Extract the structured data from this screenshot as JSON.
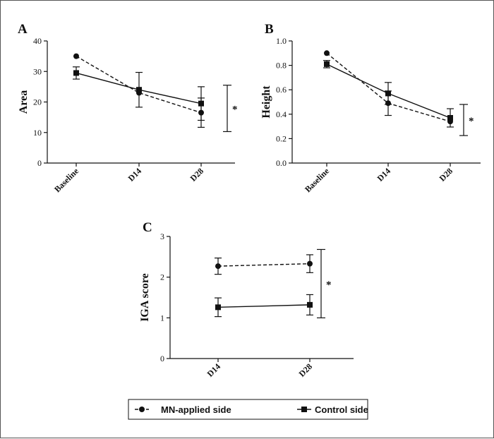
{
  "chart_data": [
    {
      "type": "line",
      "panel_label": "A",
      "ylabel": "Area",
      "xlabel": "",
      "categories": [
        "Baseline",
        "D14",
        "D28"
      ],
      "ylim": [
        0,
        40
      ],
      "yticks": [
        "0",
        "10",
        "20",
        "30",
        "40"
      ],
      "series": [
        {
          "name": "MN-applied  side",
          "values": [
            35.0,
            23.0,
            16.5
          ],
          "errors": [
            0,
            0,
            4.8
          ],
          "style": "dashed",
          "marker": "circle"
        },
        {
          "name": "Control side",
          "values": [
            29.5,
            24.0,
            19.5
          ],
          "errors": [
            2.0,
            5.7,
            5.5
          ],
          "style": "solid",
          "marker": "square"
        }
      ],
      "significance": {
        "label": "*",
        "range": [
          10.3,
          25.5
        ]
      }
    },
    {
      "type": "line",
      "panel_label": "B",
      "ylabel": "Height",
      "xlabel": "",
      "categories": [
        "Baseline",
        "D14",
        "D28"
      ],
      "ylim": [
        0,
        1.0
      ],
      "yticks": [
        "0.0",
        "0.2",
        "0.4",
        "0.6",
        "0.8",
        "1.0"
      ],
      "series": [
        {
          "name": "MN-applied  side",
          "values": [
            0.9,
            0.49,
            0.34
          ],
          "errors": [
            0,
            0.1,
            0
          ],
          "style": "dashed",
          "marker": "circle"
        },
        {
          "name": "Control side",
          "values": [
            0.81,
            0.57,
            0.37
          ],
          "errors": [
            0.03,
            0.09,
            0.075
          ],
          "style": "solid",
          "marker": "square"
        }
      ],
      "significance": {
        "label": "*",
        "range": [
          0.225,
          0.48
        ]
      }
    },
    {
      "type": "line",
      "panel_label": "C",
      "ylabel": "IGA score",
      "xlabel": "",
      "categories": [
        "D14",
        "D28"
      ],
      "ylim": [
        0,
        3
      ],
      "yticks": [
        "0",
        "1",
        "2",
        "3"
      ],
      "series": [
        {
          "name": "MN-applied  side",
          "values": [
            2.27,
            2.33
          ],
          "errors": [
            0.2,
            0.22
          ],
          "style": "dashed",
          "marker": "circle"
        },
        {
          "name": "Control side",
          "values": [
            1.26,
            1.32
          ],
          "errors": [
            0.23,
            0.25
          ],
          "style": "solid",
          "marker": "square"
        }
      ],
      "significance": {
        "label": "*",
        "range": [
          1.0,
          2.68
        ]
      }
    }
  ],
  "legend": {
    "items": [
      {
        "label": "MN-applied  side",
        "style": "dashed",
        "marker": "circle"
      },
      {
        "label": "Control side",
        "style": "solid",
        "marker": "square"
      }
    ]
  },
  "colors": {
    "ink": "#111111",
    "frame": "#555555"
  }
}
